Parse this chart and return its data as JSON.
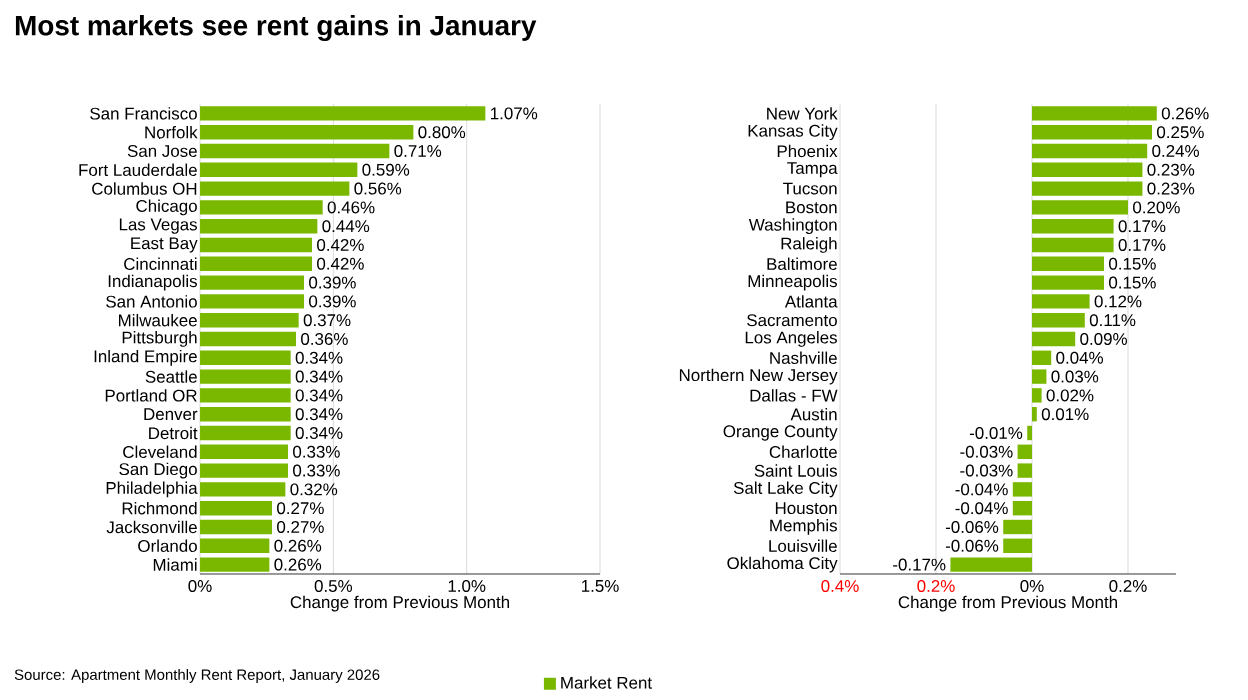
{
  "chart_data": [
    {
      "type": "bar",
      "orientation": "horizontal",
      "title": "Most markets see rent gains in January",
      "xlabel": "Change from Previous Month",
      "categories": [
        "San Francisco",
        "Norfolk",
        "San Jose",
        "Fort Lauderdale",
        "Columbus OH",
        "Chicago",
        "Las Vegas",
        "East Bay",
        "Cincinnati",
        "Indianapolis",
        "San Antonio",
        "Milwaukee",
        "Pittsburgh",
        "Inland Empire",
        "Seattle",
        "Portland OR",
        "Denver",
        "Detroit",
        "Cleveland",
        "San Diego",
        "Philadelphia",
        "Richmond",
        "Jacksonville",
        "Orlando",
        "Miami"
      ],
      "series": [
        {
          "name": "Market Rent",
          "color": "#7ab800",
          "values": [
            1.07,
            0.8,
            0.71,
            0.59,
            0.56,
            0.46,
            0.44,
            0.42,
            0.42,
            0.39,
            0.39,
            0.37,
            0.36,
            0.34,
            0.34,
            0.34,
            0.34,
            0.34,
            0.33,
            0.33,
            0.32,
            0.27,
            0.27,
            0.26,
            0.26
          ],
          "value_labels": [
            "1.07%",
            "0.80%",
            "0.71%",
            "0.59%",
            "0.56%",
            "0.46%",
            "0.44%",
            "0.42%",
            "0.42%",
            "0.39%",
            "0.39%",
            "0.37%",
            "0.36%",
            "0.34%",
            "0.34%",
            "0.34%",
            "0.34%",
            "0.34%",
            "0.33%",
            "0.33%",
            "0.32%",
            "0.27%",
            "0.27%",
            "0.26%",
            "0.26%"
          ]
        }
      ],
      "xlim": [
        0,
        1.5
      ],
      "xticks": [
        {
          "value": 0,
          "label": "0%"
        },
        {
          "value": 0.5,
          "label": "0.5%"
        },
        {
          "value": 1.0,
          "label": "1.0%"
        },
        {
          "value": 1.5,
          "label": "1.5%"
        }
      ],
      "grid": "x",
      "legend": "bottom",
      "annotations": [
        "Source: Apartment Monthly Rent Report, January 2026"
      ]
    },
    {
      "type": "bar",
      "orientation": "horizontal",
      "xlabel": "Change from Previous Month",
      "categories": [
        "New York",
        "Kansas City",
        "Phoenix",
        "Tampa",
        "Tucson",
        "Boston",
        "Washington",
        "Raleigh",
        "Baltimore",
        "Minneapolis",
        "Atlanta",
        "Sacramento",
        "Los Angeles",
        "Nashville",
        "Northern New Jersey",
        "Dallas - FW",
        "Austin",
        "Orange County",
        "Charlotte",
        "Saint Louis",
        "Salt Lake City",
        "Houston",
        "Memphis",
        "Louisville",
        "Oklahoma City"
      ],
      "series": [
        {
          "color": "#7ab800",
          "values": [
            0.26,
            0.25,
            0.24,
            0.23,
            0.23,
            0.2,
            0.17,
            0.17,
            0.15,
            0.15,
            0.12,
            0.11,
            0.09,
            0.04,
            0.03,
            0.02,
            0.01,
            -0.01,
            -0.03,
            -0.03,
            -0.04,
            -0.04,
            -0.06,
            -0.06,
            -0.17
          ],
          "value_labels": [
            "0.26%",
            "0.25%",
            "0.24%",
            "0.23%",
            "0.23%",
            "0.20%",
            "0.17%",
            "0.17%",
            "0.15%",
            "0.15%",
            "0.12%",
            "0.11%",
            "0.09%",
            "0.04%",
            "0.03%",
            "0.02%",
            "0.01%",
            "-0.01%",
            "-0.03%",
            "-0.03%",
            "-0.04%",
            "-0.04%",
            "-0.06%",
            "-0.06%",
            "-0.17%"
          ]
        }
      ],
      "xlim": [
        -0.4,
        0.3
      ],
      "xticks": [
        {
          "value": -0.4,
          "label": "0.4%"
        },
        {
          "value": -0.2,
          "label": "0.2%"
        },
        {
          "value": 0,
          "label": "0%"
        },
        {
          "value": 0.2,
          "label": "0.2%"
        }
      ],
      "grid": "x"
    }
  ]
}
